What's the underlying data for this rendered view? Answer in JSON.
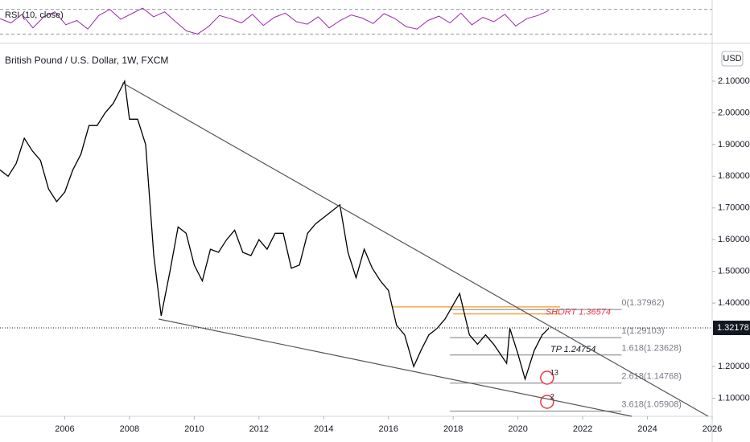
{
  "chart_data": {
    "type": "line",
    "title": "British Pound / U.S. Dollar, 1W, FXCM",
    "currency": "USD",
    "color": "#000000",
    "x": [
      2004.0,
      2004.25,
      2004.5,
      2004.75,
      2005.0,
      2005.25,
      2005.5,
      2005.75,
      2006.0,
      2006.25,
      2006.5,
      2006.75,
      2007.0,
      2007.25,
      2007.5,
      2007.85,
      2008.0,
      2008.25,
      2008.5,
      2008.75,
      2008.98,
      2009.25,
      2009.5,
      2009.75,
      2010.0,
      2010.25,
      2010.5,
      2010.75,
      2011.0,
      2011.25,
      2011.5,
      2011.75,
      2012.0,
      2012.25,
      2012.5,
      2012.75,
      2013.0,
      2013.25,
      2013.5,
      2013.75,
      2014.0,
      2014.5,
      2014.75,
      2015.0,
      2015.25,
      2015.5,
      2015.75,
      2016.0,
      2016.25,
      2016.5,
      2016.78,
      2017.0,
      2017.25,
      2017.5,
      2017.75,
      2018.2,
      2018.5,
      2018.75,
      2019.0,
      2019.25,
      2019.65,
      2019.75,
      2020.0,
      2020.22,
      2020.5,
      2020.75,
      2020.95
    ],
    "values": [
      1.82,
      1.8,
      1.84,
      1.92,
      1.88,
      1.85,
      1.76,
      1.72,
      1.75,
      1.82,
      1.87,
      1.96,
      1.96,
      2.0,
      2.03,
      2.1,
      1.98,
      1.98,
      1.9,
      1.55,
      1.36,
      1.5,
      1.64,
      1.62,
      1.52,
      1.47,
      1.57,
      1.56,
      1.6,
      1.63,
      1.56,
      1.55,
      1.6,
      1.57,
      1.62,
      1.62,
      1.51,
      1.52,
      1.62,
      1.65,
      1.67,
      1.71,
      1.56,
      1.48,
      1.57,
      1.51,
      1.47,
      1.44,
      1.33,
      1.3,
      1.2,
      1.25,
      1.3,
      1.32,
      1.35,
      1.43,
      1.3,
      1.27,
      1.3,
      1.27,
      1.21,
      1.32,
      1.24,
      1.16,
      1.25,
      1.3,
      1.32
    ],
    "xlim": [
      2004,
      2026
    ],
    "ylim": [
      1.043,
      2.219
    ],
    "xticks": [
      2006,
      2008,
      2010,
      2012,
      2014,
      2016,
      2018,
      2020,
      2022,
      2024,
      2026
    ],
    "yticks": [
      {
        "value": 1.1,
        "label": "1.10000"
      },
      {
        "value": 1.2,
        "label": "1.20000"
      },
      {
        "value": 1.4,
        "label": "1.40000"
      },
      {
        "value": 1.5,
        "label": "1.50000"
      },
      {
        "value": 1.6,
        "label": "1.60000"
      },
      {
        "value": 1.7,
        "label": "1.70000"
      },
      {
        "value": 1.8,
        "label": "1.80000"
      },
      {
        "value": 1.9,
        "label": "1.90000"
      },
      {
        "value": 2.0,
        "label": "2.00000"
      },
      {
        "value": 2.1,
        "label": "2.10000"
      }
    ],
    "last_price": {
      "value": 1.32178,
      "label": "1.32178"
    },
    "fib_levels": [
      {
        "value": 1.37962,
        "label": "0(1.37962)"
      },
      {
        "value": 1.29103,
        "label": "1(1.29103)"
      },
      {
        "value": 1.23628,
        "label": "1.618(1.23628)"
      },
      {
        "value": 1.14768,
        "label": "2.618(1.14768)"
      },
      {
        "value": 1.05908,
        "label": "3.618(1.05908)"
      }
    ],
    "short": {
      "value": 1.36574,
      "label": "SHORT 1.36574"
    },
    "tp": {
      "value": 1.24754,
      "label": "TP 1.24754"
    },
    "orange_level": 1.388,
    "events": [
      "13",
      "2"
    ],
    "rsi": {
      "label": "RSI (10, close)",
      "color": "#9c27b0",
      "ylim": [
        20,
        80
      ],
      "levels": [
        70,
        30
      ],
      "values": [
        55,
        48,
        62,
        40,
        58,
        66,
        45,
        52,
        38,
        60,
        70,
        54,
        63,
        72,
        58,
        66,
        50,
        35,
        30,
        42,
        60,
        55,
        48,
        62,
        44,
        57,
        64,
        50,
        46,
        58,
        40,
        52,
        61,
        56,
        47,
        63,
        55,
        42,
        38,
        52,
        59,
        48,
        64,
        45,
        57,
        50,
        62,
        43,
        55,
        60,
        68
      ]
    }
  }
}
